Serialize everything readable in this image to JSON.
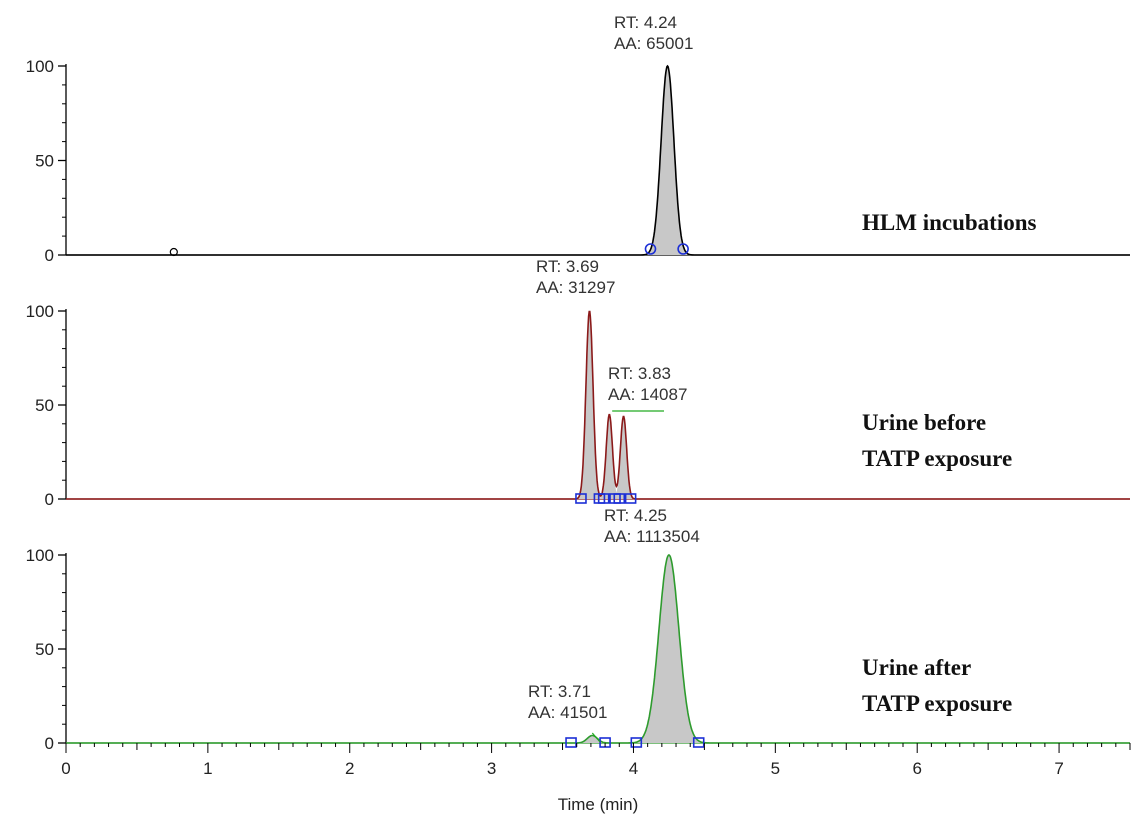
{
  "chart_data": {
    "type": "line",
    "xlabel": "Time (min)",
    "xlim": [
      0,
      7.5
    ],
    "x_ticks": [
      0,
      1,
      2,
      3,
      4,
      5,
      6,
      7
    ],
    "ylim": [
      0,
      100
    ],
    "y_ticks": [
      0,
      50,
      100
    ],
    "grid": false,
    "panels": [
      {
        "label_lines": [
          "HLM incubations"
        ],
        "color": "#000000",
        "fill": "#c8c8c8",
        "peaks": [
          {
            "rt": 4.24,
            "height": 100,
            "width": 0.045,
            "rt_label": "RT: 4.24",
            "aa_label": "AA: 65001"
          }
        ],
        "minor_markers": [
          0.76
        ],
        "boundary_markers": [
          4.12,
          4.35
        ]
      },
      {
        "label_lines": [
          "Urine before",
          "TATP exposure"
        ],
        "color": "#8b1a1a",
        "fill": "#c8c8c8",
        "peaks": [
          {
            "rt": 3.69,
            "height": 100,
            "width": 0.025,
            "rt_label": "RT: 3.69",
            "aa_label": "AA: 31297"
          },
          {
            "rt": 3.83,
            "height": 45,
            "width": 0.022,
            "rt_label": "RT: 3.83",
            "aa_label": "AA: 14087"
          },
          {
            "rt": 3.93,
            "height": 44,
            "width": 0.022,
            "rt_label": "",
            "aa_label": ""
          }
        ],
        "minor_markers": [],
        "boundary_markers": [
          3.63,
          3.76,
          3.79,
          3.87,
          3.9,
          3.98
        ]
      },
      {
        "label_lines": [
          "Urine after",
          "TATP exposure"
        ],
        "color": "#2e9b2e",
        "fill": "#c8c8c8",
        "peaks": [
          {
            "rt": 4.25,
            "height": 100,
            "width": 0.07,
            "rt_label": "RT: 4.25",
            "aa_label": "AA: 1113504"
          },
          {
            "rt": 3.71,
            "height": 4,
            "width": 0.035,
            "rt_label": "RT: 3.71",
            "aa_label": "AA: 41501"
          }
        ],
        "minor_markers": [],
        "boundary_markers": [
          3.56,
          3.8,
          4.02,
          4.46
        ]
      }
    ]
  }
}
